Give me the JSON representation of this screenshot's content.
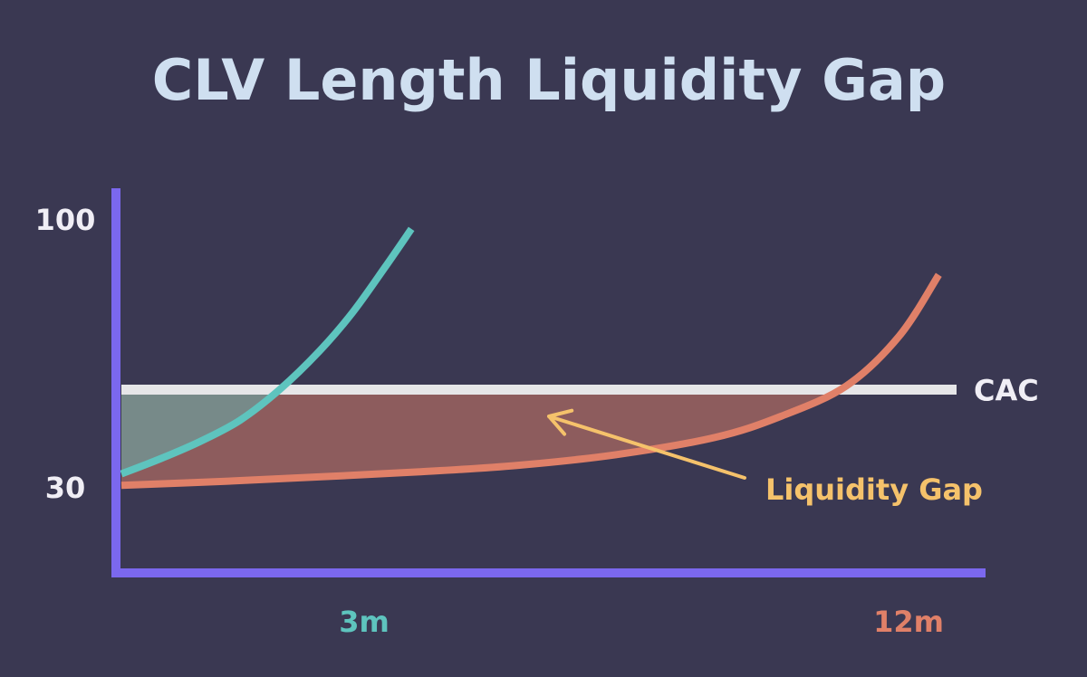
{
  "chart_data": {
    "type": "line",
    "title": "CLV Length Liquidity Gap",
    "xlabel": "",
    "ylabel": "",
    "y_ticks": [
      {
        "value": 100,
        "label": "100"
      },
      {
        "value": 30,
        "label": "30"
      }
    ],
    "x_ticks": [
      {
        "value": 3,
        "label": "3m",
        "color": "#5ec4be"
      },
      {
        "value": 12,
        "label": "12m",
        "color": "#e08068"
      }
    ],
    "xlim": [
      0,
      13
    ],
    "ylim": [
      0,
      100
    ],
    "grid": false,
    "series": [
      {
        "name": "",
        "color": "#5ec4be",
        "points": [
          {
            "x": 0,
            "y": 32
          },
          {
            "x": 0.6,
            "y": 36
          },
          {
            "x": 1.2,
            "y": 40.5
          },
          {
            "x": 1.8,
            "y": 46
          },
          {
            "x": 2.4,
            "y": 54
          },
          {
            "x": 3.0,
            "y": 64
          },
          {
            "x": 3.5,
            "y": 74
          },
          {
            "x": 4.0,
            "y": 86
          },
          {
            "x": 4.4,
            "y": 96
          }
        ]
      },
      {
        "name": "",
        "color": "#e08068",
        "points": [
          {
            "x": 0,
            "y": 29
          },
          {
            "x": 1.5,
            "y": 30
          },
          {
            "x": 3.0,
            "y": 31.2
          },
          {
            "x": 4.5,
            "y": 32.5
          },
          {
            "x": 6.0,
            "y": 34.2
          },
          {
            "x": 7.5,
            "y": 37
          },
          {
            "x": 9.0,
            "y": 41.5
          },
          {
            "x": 10.0,
            "y": 47
          },
          {
            "x": 11.0,
            "y": 55
          },
          {
            "x": 11.8,
            "y": 68
          },
          {
            "x": 12.4,
            "y": 84
          }
        ]
      }
    ],
    "reference_lines": [
      {
        "name": "CAC",
        "label": "CAC",
        "y": 54,
        "color": "#e6e6e8"
      }
    ],
    "annotations": [
      {
        "text": "Liquidity Gap",
        "color": "#f5c26b",
        "arrow_to": {
          "x": 6.5,
          "y": 42
        }
      }
    ],
    "fills": [
      {
        "between": "CAC and teal",
        "color": "#5ec4be",
        "opacity": 0.45
      },
      {
        "between": "CAC and orange",
        "color": "#e08068",
        "opacity": 0.5
      }
    ]
  },
  "colors": {
    "background": "#3a3852",
    "axis": "#7b68ee"
  }
}
